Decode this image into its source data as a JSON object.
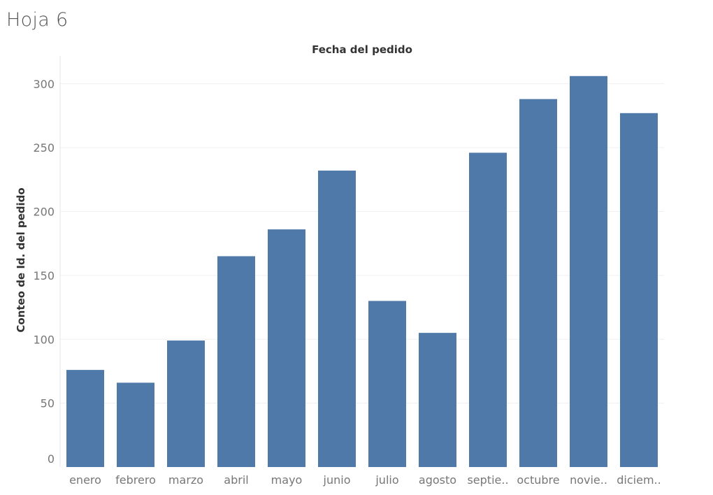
{
  "sheet": {
    "title": "Hoja 6"
  },
  "chart_data": {
    "type": "bar",
    "title": "",
    "xlabel": "Fecha del pedido",
    "ylabel": "Conteo de Id. del pedido",
    "categories": [
      "enero",
      "febrero",
      "marzo",
      "abril",
      "mayo",
      "junio",
      "julio",
      "agosto",
      "septie..",
      "octubre",
      "novie..",
      "diciem.."
    ],
    "values": [
      76,
      66,
      99,
      165,
      186,
      232,
      130,
      105,
      246,
      288,
      306,
      277
    ],
    "ylim": [
      0,
      320
    ],
    "yticks": [
      0,
      50,
      100,
      150,
      200,
      250,
      300
    ],
    "grid": true,
    "legend": "none",
    "bar_color": "#4f79a8"
  }
}
